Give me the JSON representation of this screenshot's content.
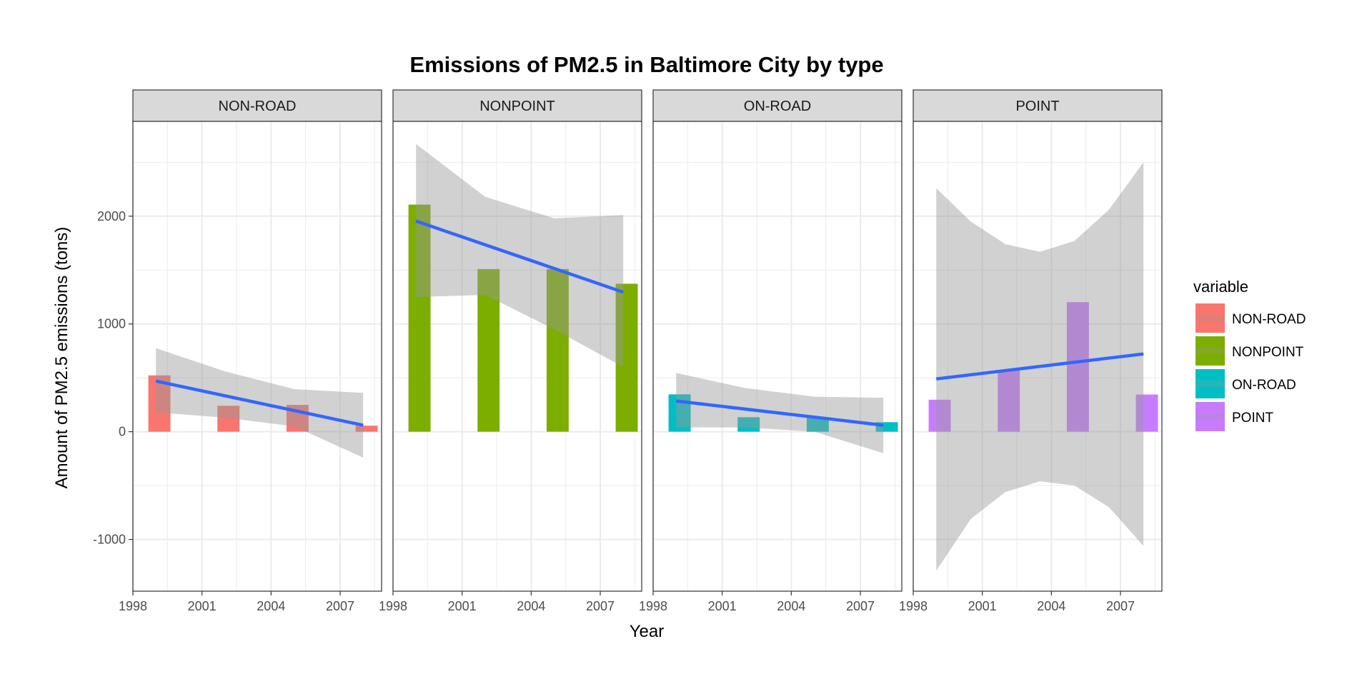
{
  "chart_data": {
    "type": "bar",
    "title": "Emissions of PM2.5 in Baltimore City by type",
    "xlabel": "Year",
    "ylabel": "Amount of PM2.5 emissions (tons)",
    "xlim": [
      1998,
      2008.8
    ],
    "ylim": [
      -1480,
      2880
    ],
    "x_ticks": [
      1998,
      2001,
      2004,
      2007
    ],
    "x_tick_labels": [
      "1998",
      "2001",
      "2004",
      "2007"
    ],
    "y_ticks": [
      -1000,
      0,
      1000,
      2000
    ],
    "y_tick_labels": [
      "-1000",
      "0",
      "1000",
      "2000"
    ],
    "grid": true,
    "years": [
      1999,
      2002,
      2005,
      2008
    ],
    "legend": {
      "title": "variable",
      "placement": "right"
    },
    "panels": [
      {
        "name": "NON-ROAD",
        "color": "#F8766D",
        "values": [
          522.94,
          240.85,
          248.93,
          55.82
        ],
        "trend": {
          "start": [
            1999,
            470
          ],
          "end": [
            2008,
            60
          ]
        },
        "band": {
          "x": [
            1999,
            2002,
            2005,
            2008
          ],
          "upper": [
            775,
            560,
            395,
            360
          ],
          "lower": [
            180,
            130,
            50,
            -240
          ]
        }
      },
      {
        "name": "NONPOINT",
        "color": "#7CAE00",
        "values": [
          2107.63,
          1509.5,
          1509.5,
          1373.21
        ],
        "trend": {
          "start": [
            1999,
            1955
          ],
          "end": [
            2008,
            1295
          ]
        },
        "band": {
          "x": [
            1999,
            2002,
            2005,
            2008
          ],
          "upper": [
            2670,
            2180,
            1980,
            2010
          ],
          "lower": [
            1250,
            1270,
            950,
            600
          ]
        }
      },
      {
        "name": "ON-ROAD",
        "color": "#00BFC4",
        "values": [
          346.82,
          134.31,
          130.43,
          88.28
        ],
        "trend": {
          "start": [
            1999,
            285
          ],
          "end": [
            2008,
            60
          ]
        },
        "band": {
          "x": [
            1999,
            2002,
            2005,
            2008
          ],
          "upper": [
            545,
            405,
            325,
            315
          ],
          "lower": [
            40,
            40,
            0,
            -200
          ]
        }
      },
      {
        "name": "POINT",
        "color": "#C77CFF",
        "values": [
          296.8,
          569.26,
          1202.49,
          344.98
        ],
        "trend": {
          "start": [
            1999,
            490
          ],
          "end": [
            2008,
            722
          ]
        },
        "band": {
          "x": [
            1999,
            2000.5,
            2002,
            2003.5,
            2005,
            2006.5,
            2008
          ],
          "upper": [
            2260,
            1950,
            1740,
            1670,
            1770,
            2060,
            2500
          ],
          "lower": [
            -1290,
            -810,
            -560,
            -460,
            -500,
            -700,
            -1060
          ]
        }
      }
    ],
    "smooth_color": "#3366FF",
    "band_color": "#999999"
  }
}
